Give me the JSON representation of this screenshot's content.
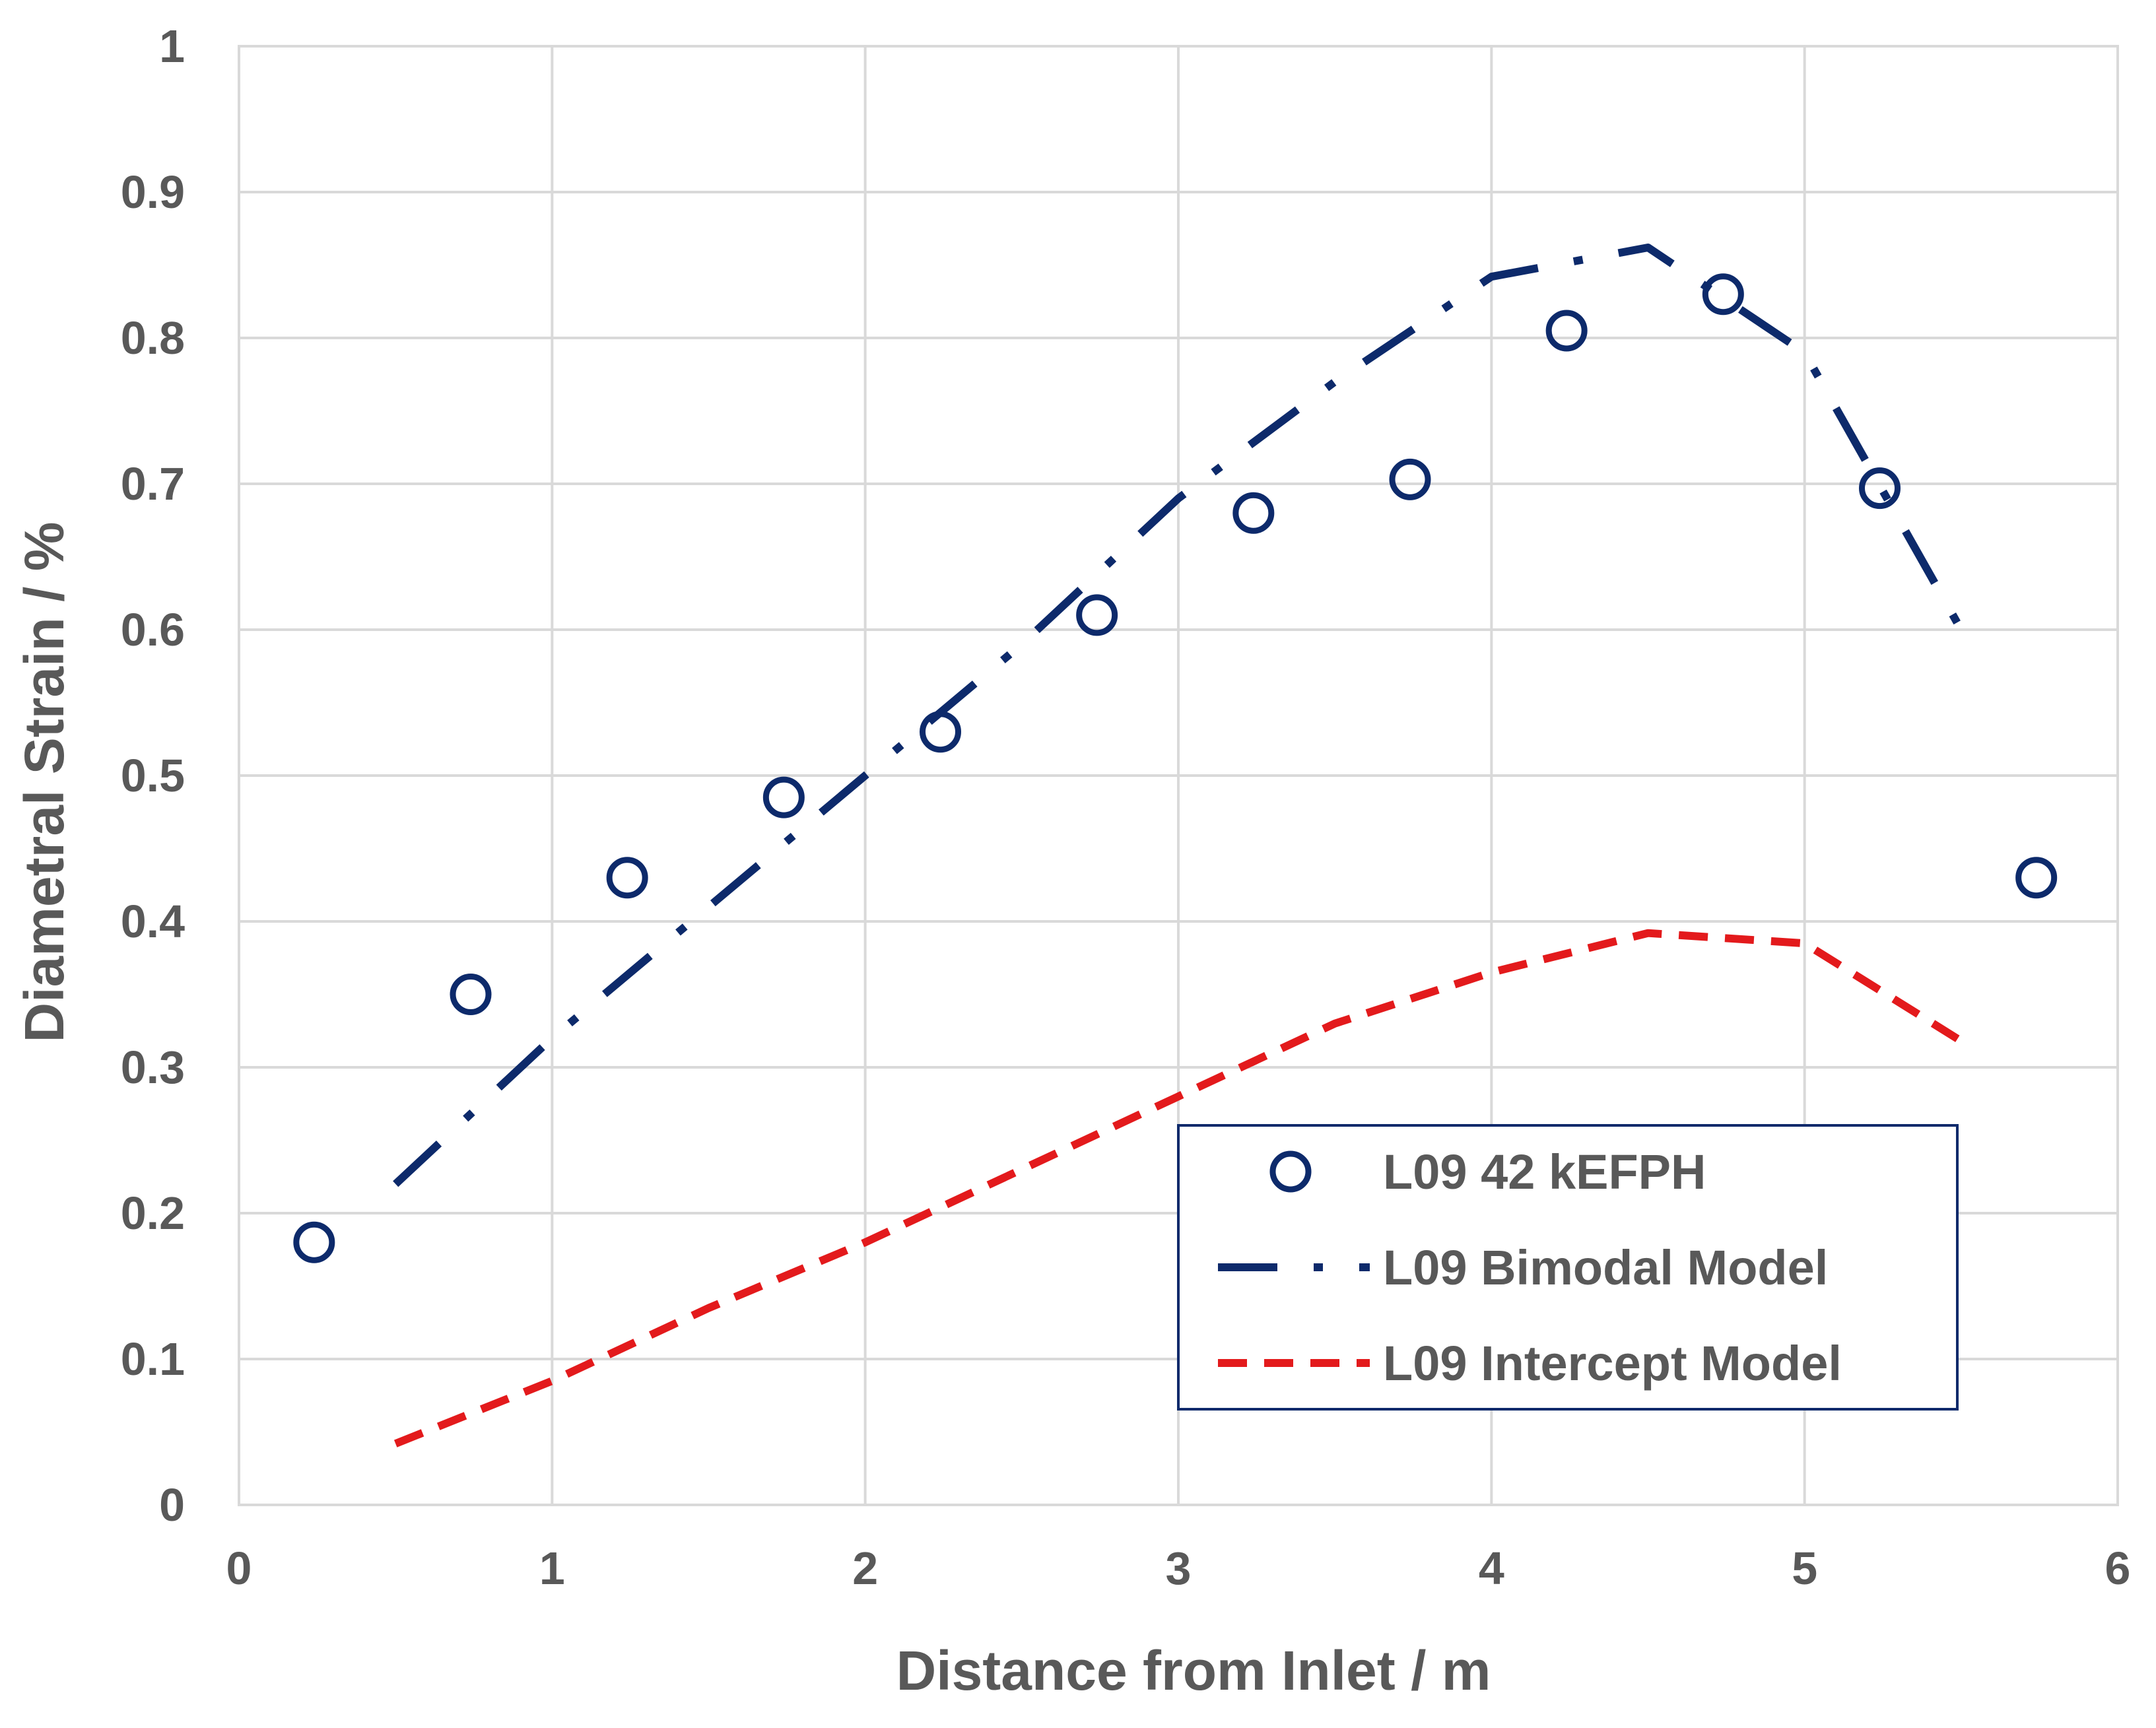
{
  "chart_data": {
    "type": "scatter",
    "title": "",
    "xlabel": "Distance from Inlet / m",
    "ylabel": "Diametral Strain / %",
    "xlim": [
      0,
      6
    ],
    "ylim": [
      0,
      1
    ],
    "x_ticks": [
      "0",
      "1",
      "2",
      "3",
      "4",
      "5",
      "6"
    ],
    "y_ticks": [
      "0",
      "0.1",
      "0.2",
      "0.3",
      "0.4",
      "0.5",
      "0.6",
      "0.7",
      "0.8",
      "0.9",
      "1"
    ],
    "grid": true,
    "legend_position": "bottom-right",
    "series": [
      {
        "name": "L09 42 kEFPH",
        "type": "scatter",
        "marker": "open-circle",
        "color": "#0d2a6b",
        "points": [
          [
            0.24,
            0.18
          ],
          [
            0.74,
            0.35
          ],
          [
            1.24,
            0.43
          ],
          [
            1.74,
            0.485
          ],
          [
            2.24,
            0.53
          ],
          [
            2.74,
            0.61
          ],
          [
            3.24,
            0.68
          ],
          [
            3.74,
            0.703
          ],
          [
            4.24,
            0.805
          ],
          [
            4.74,
            0.83
          ],
          [
            5.24,
            0.697
          ],
          [
            5.74,
            0.43
          ]
        ]
      },
      {
        "name": "L09 Bimodal Model",
        "type": "line",
        "style": "dash-dot",
        "color": "#0d2a6b",
        "points": [
          [
            0.5,
            0.22
          ],
          [
            1.0,
            0.32
          ],
          [
            1.5,
            0.41
          ],
          [
            2.0,
            0.5
          ],
          [
            2.5,
            0.59
          ],
          [
            3.0,
            0.69
          ],
          [
            3.5,
            0.77
          ],
          [
            4.0,
            0.842
          ],
          [
            4.5,
            0.862
          ],
          [
            5.0,
            0.79
          ],
          [
            5.5,
            0.6
          ]
        ]
      },
      {
        "name": "L09 Intercept Model",
        "type": "line",
        "style": "dashed",
        "color": "#e31a1c",
        "points": [
          [
            0.5,
            0.042
          ],
          [
            1.0,
            0.085
          ],
          [
            1.5,
            0.135
          ],
          [
            2.0,
            0.18
          ],
          [
            2.5,
            0.23
          ],
          [
            3.0,
            0.28
          ],
          [
            3.5,
            0.33
          ],
          [
            4.0,
            0.365
          ],
          [
            4.5,
            0.392
          ],
          [
            5.0,
            0.385
          ],
          [
            5.5,
            0.318
          ]
        ]
      }
    ]
  }
}
